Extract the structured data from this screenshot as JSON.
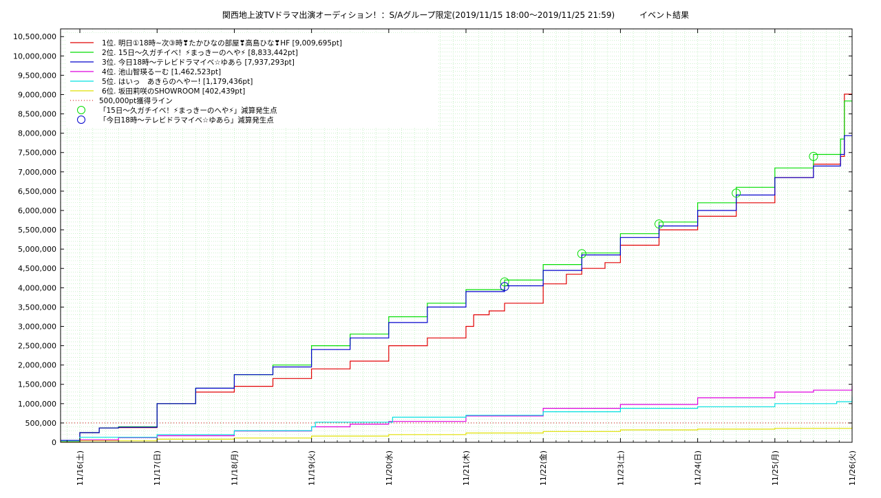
{
  "chart_data": {
    "type": "line",
    "title": "関西地上波TVドラマ出演オーディション！：S/Aグループ限定(2019/11/15 18:00～2019/11/25 21:59)　　　イベント結果",
    "xlabel": "",
    "ylabel": "",
    "x_unit": "day (0 = 11/16 00:00)",
    "xlim": [
      -0.25,
      10.0
    ],
    "ylim": [
      0,
      10700000
    ],
    "grid": true,
    "legend_position": "top-left",
    "x_tick_labels": [
      "11/16(土)",
      "11/17(日)",
      "11/18(月)",
      "11/19(火)",
      "11/20(水)",
      "11/21(木)",
      "11/22(金)",
      "11/23(土)",
      "11/24(日)",
      "11/25(月)",
      "11/26(火)"
    ],
    "y_tick_labels": [
      "0",
      "500,000",
      "1,000,000",
      "1,500,000",
      "2,000,000",
      "2,500,000",
      "3,000,000",
      "3,500,000",
      "4,000,000",
      "4,500,000",
      "5,000,000",
      "5,500,000",
      "6,000,000",
      "6,500,000",
      "7,000,000",
      "7,500,000",
      "8,000,000",
      "8,500,000",
      "9,000,000",
      "9,500,000",
      "10,000,000",
      "10,500,000"
    ],
    "series": [
      {
        "name": "1位. 明日①18時~次③時❣たかひなの部屋❣高島ひな❣HF [9,009,695pt]",
        "color": "#e00000",
        "points": [
          [
            -0.25,
            20000
          ],
          [
            0,
            250000
          ],
          [
            0.25,
            370000
          ],
          [
            0.5,
            380000
          ],
          [
            1,
            1000000
          ],
          [
            1.5,
            1300000
          ],
          [
            2,
            1450000
          ],
          [
            2.5,
            1650000
          ],
          [
            3,
            1900000
          ],
          [
            3.5,
            2100000
          ],
          [
            4,
            2500000
          ],
          [
            4.5,
            2700000
          ],
          [
            5,
            3000000
          ],
          [
            5.1,
            3300000
          ],
          [
            5.3,
            3400000
          ],
          [
            5.5,
            3600000
          ],
          [
            6,
            4100000
          ],
          [
            6.3,
            4350000
          ],
          [
            6.5,
            4500000
          ],
          [
            6.8,
            4650000
          ],
          [
            7,
            5100000
          ],
          [
            7.5,
            5500000
          ],
          [
            8,
            5850000
          ],
          [
            8.5,
            6200000
          ],
          [
            9,
            6850000
          ],
          [
            9.5,
            7200000
          ],
          [
            9.85,
            7400000
          ],
          [
            9.9,
            9009695
          ],
          [
            10,
            9009695
          ]
        ]
      },
      {
        "name": "2位. 15日～久ガチイベ！⚡まっきーのへや⚡ [8,833,442pt]",
        "color": "#00dd00",
        "points": [
          [
            -0.25,
            40000
          ],
          [
            0,
            250000
          ],
          [
            0.25,
            370000
          ],
          [
            0.5,
            400000
          ],
          [
            1,
            1000000
          ],
          [
            1.5,
            1400000
          ],
          [
            2,
            1750000
          ],
          [
            2.5,
            2000000
          ],
          [
            3,
            2500000
          ],
          [
            3.5,
            2800000
          ],
          [
            4,
            3250000
          ],
          [
            4.5,
            3600000
          ],
          [
            5,
            3950000
          ],
          [
            5.5,
            4200000
          ],
          [
            6,
            4600000
          ],
          [
            6.5,
            4900000
          ],
          [
            7,
            5400000
          ],
          [
            7.5,
            5700000
          ],
          [
            8,
            6200000
          ],
          [
            8.5,
            6600000
          ],
          [
            9,
            7100000
          ],
          [
            9.5,
            7450000
          ],
          [
            9.85,
            7850000
          ],
          [
            9.9,
            8833442
          ],
          [
            10,
            8833442
          ]
        ]
      },
      {
        "name": "3位. 今日18時～テレビドラマイベ☆ゆあら [7,937,293pt]",
        "color": "#0000cc",
        "points": [
          [
            -0.25,
            50000
          ],
          [
            0,
            250000
          ],
          [
            0.25,
            370000
          ],
          [
            0.5,
            390000
          ],
          [
            1,
            1000000
          ],
          [
            1.5,
            1400000
          ],
          [
            2,
            1750000
          ],
          [
            2.5,
            1950000
          ],
          [
            3,
            2400000
          ],
          [
            3.5,
            2700000
          ],
          [
            4,
            3100000
          ],
          [
            4.5,
            3500000
          ],
          [
            5,
            3900000
          ],
          [
            5.5,
            4050000
          ],
          [
            6,
            4450000
          ],
          [
            6.5,
            4850000
          ],
          [
            7,
            5300000
          ],
          [
            7.5,
            5600000
          ],
          [
            8,
            6000000
          ],
          [
            8.5,
            6400000
          ],
          [
            9,
            6850000
          ],
          [
            9.5,
            7150000
          ],
          [
            9.85,
            7450000
          ],
          [
            9.9,
            7937293
          ],
          [
            10,
            7937293
          ]
        ]
      },
      {
        "name": "4位. 池山智瑛るーむ [1,462,523pt]",
        "color": "#dd00dd",
        "points": [
          [
            -0.25,
            30000
          ],
          [
            0,
            60000
          ],
          [
            0.5,
            120000
          ],
          [
            1,
            170000
          ],
          [
            2,
            290000
          ],
          [
            3,
            400000
          ],
          [
            3.5,
            470000
          ],
          [
            4,
            540000
          ],
          [
            5,
            680000
          ],
          [
            6,
            880000
          ],
          [
            7,
            980000
          ],
          [
            8,
            1150000
          ],
          [
            9,
            1300000
          ],
          [
            9.5,
            1350000
          ],
          [
            10,
            1462523
          ]
        ]
      },
      {
        "name": "5位. はいっ　あきらのへやー! [1,179,436pt]",
        "color": "#00e0e0",
        "points": [
          [
            -0.25,
            30000
          ],
          [
            0,
            130000
          ],
          [
            1,
            200000
          ],
          [
            2,
            300000
          ],
          [
            3,
            400000
          ],
          [
            3.05,
            520000
          ],
          [
            4,
            520000
          ],
          [
            4.05,
            650000
          ],
          [
            5,
            700000
          ],
          [
            6,
            790000
          ],
          [
            7,
            880000
          ],
          [
            8,
            920000
          ],
          [
            9,
            1000000
          ],
          [
            9.8,
            1050000
          ],
          [
            10,
            1179436
          ]
        ]
      },
      {
        "name": "6位. 坂田莉咲のSHOWROOM [402,439pt]",
        "color": "#e0e000",
        "points": [
          [
            -0.25,
            10000
          ],
          [
            0,
            40000
          ],
          [
            1,
            80000
          ],
          [
            2,
            110000
          ],
          [
            3,
            160000
          ],
          [
            4,
            200000
          ],
          [
            5,
            240000
          ],
          [
            6,
            280000
          ],
          [
            7,
            320000
          ],
          [
            8,
            340000
          ],
          [
            9,
            360000
          ],
          [
            10,
            402439
          ]
        ]
      }
    ],
    "reference_line": {
      "name": "500,000pt獲得ライン",
      "value": 500000,
      "color": "#cc0000"
    },
    "markers": [
      {
        "name": "「15日～久ガチイベ！⚡まっきーのへや⚡」減算発生点",
        "color": "#00dd00",
        "points": [
          [
            5.5,
            4150000
          ],
          [
            6.5,
            4880000
          ],
          [
            7.5,
            5650000
          ],
          [
            8.5,
            6450000
          ],
          [
            9.5,
            7400000
          ]
        ]
      },
      {
        "name": "「今日18時～テレビドラマイベ☆ゆあら」減算発生点",
        "color": "#0000cc",
        "points": [
          [
            5.5,
            4030000
          ]
        ]
      }
    ]
  }
}
